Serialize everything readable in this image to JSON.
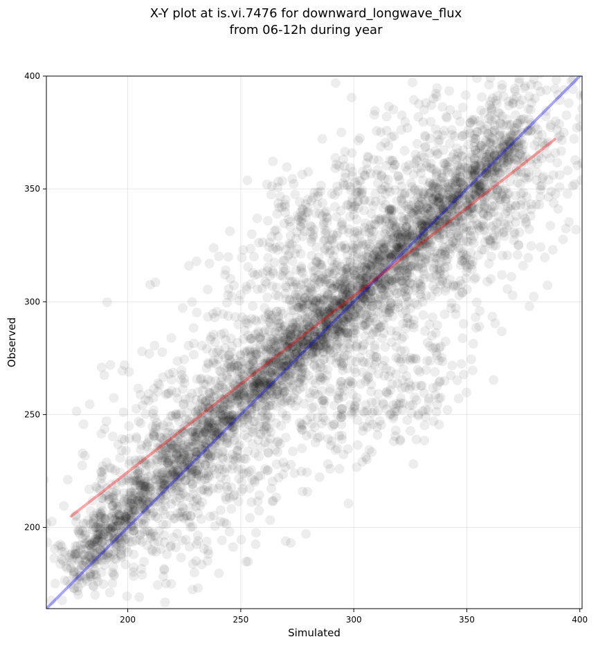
{
  "chart_data": {
    "type": "scatter",
    "title": "X-Y plot at is.vi.7476 for downward_longwave_flux",
    "subtitle": "from 06-12h during year",
    "xlabel": "Simulated",
    "ylabel": "Observed",
    "xlim": [
      164,
      401
    ],
    "ylim": [
      164,
      400
    ],
    "xticks": [
      200,
      250,
      300,
      350,
      400
    ],
    "yticks": [
      200,
      250,
      300,
      350,
      400
    ],
    "xtick_labels": [
      "200",
      "250",
      "300",
      "350",
      "400"
    ],
    "ytick_labels": [
      "200",
      "250",
      "300",
      "350",
      "400"
    ],
    "grid": true,
    "point_color": "#000000",
    "point_alpha": 0.07,
    "lines": [
      {
        "kind": "1:1",
        "color": "#0000ff",
        "alpha": 0.35,
        "x": [
          164,
          401
        ],
        "y": [
          164,
          401
        ]
      },
      {
        "kind": "regression",
        "color": "#ff0000",
        "alpha": 0.35,
        "x": [
          175,
          389
        ],
        "y": [
          205,
          372
        ]
      }
    ],
    "clusters": [
      {
        "x0": 175,
        "y0": 182,
        "x1": 372,
        "y1": 372,
        "spread": 5,
        "count": 900
      },
      {
        "x0": 175,
        "y0": 182,
        "x1": 372,
        "y1": 372,
        "spread": 11,
        "count": 1400
      },
      {
        "x0": 240,
        "y0": 260,
        "x1": 360,
        "y1": 350,
        "spread": 12,
        "count": 500
      },
      {
        "x0": 195,
        "y0": 205,
        "x1": 385,
        "y1": 380,
        "spread": 26,
        "count": 1900
      },
      {
        "x0": 255,
        "y0": 325,
        "x1": 320,
        "y1": 355,
        "spread": 14,
        "count": 220
      },
      {
        "x0": 290,
        "y0": 245,
        "x1": 345,
        "y1": 270,
        "spread": 12,
        "count": 180
      }
    ]
  }
}
